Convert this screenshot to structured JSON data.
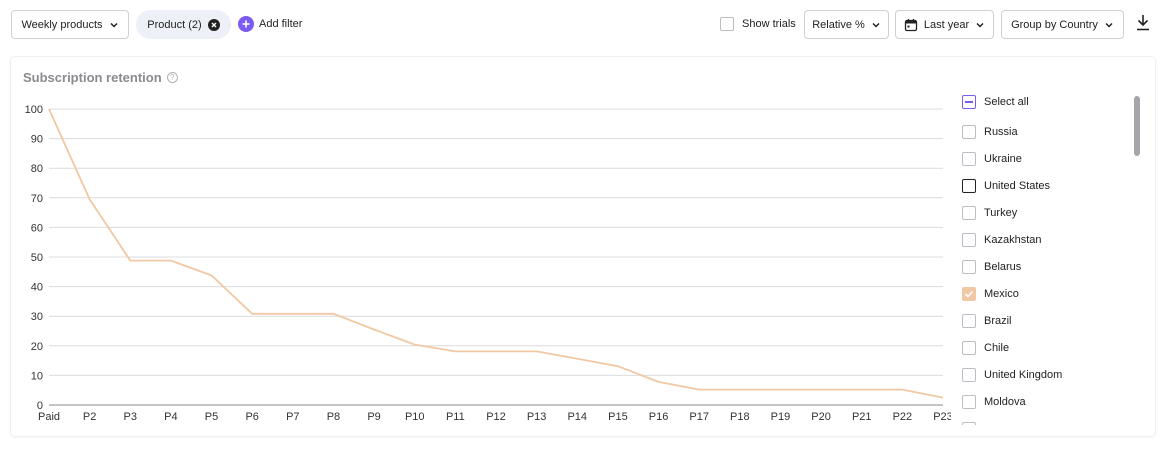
{
  "toolbar": {
    "period_dropdown": "Weekly products",
    "product_chip": "Product (2)",
    "add_filter": "Add filter",
    "show_trials": "Show trials",
    "mode_dropdown": "Relative %",
    "date_dropdown": "Last year",
    "group_dropdown": "Group by Country"
  },
  "card": {
    "title": "Subscription retention",
    "help_glyph": "?"
  },
  "legend": {
    "select_all": "Select all",
    "items": [
      {
        "label": "Russia",
        "state": "unchecked"
      },
      {
        "label": "Ukraine",
        "state": "unchecked"
      },
      {
        "label": "United States",
        "state": "focused"
      },
      {
        "label": "Turkey",
        "state": "unchecked"
      },
      {
        "label": "Kazakhstan",
        "state": "unchecked"
      },
      {
        "label": "Belarus",
        "state": "unchecked"
      },
      {
        "label": "Mexico",
        "state": "checked"
      },
      {
        "label": "Brazil",
        "state": "unchecked"
      },
      {
        "label": "Chile",
        "state": "unchecked"
      },
      {
        "label": "United Kingdom",
        "state": "unchecked"
      },
      {
        "label": "Moldova",
        "state": "unchecked"
      }
    ]
  },
  "colors": {
    "accent": "#7b5cf0",
    "series_mexico": "#f0c8a4",
    "grid": "#dcdcdf",
    "axis": "#8a8a8f"
  },
  "icons": {
    "period_chevron": "chevron-down-icon",
    "chip_remove": "close-circle-icon",
    "add_filter": "plus-circle-icon",
    "calendar": "calendar-icon",
    "download": "download-icon",
    "help": "help-circle-icon"
  },
  "chart_data": {
    "type": "line",
    "title": "Subscription retention",
    "categories": [
      "Paid",
      "P2",
      "P3",
      "P4",
      "P5",
      "P6",
      "P7",
      "P8",
      "P9",
      "P10",
      "P11",
      "P12",
      "P13",
      "P14",
      "P15",
      "P16",
      "P17",
      "P18",
      "P19",
      "P20",
      "P21",
      "P22",
      "P23"
    ],
    "yticks": [
      0,
      10,
      20,
      30,
      40,
      50,
      60,
      70,
      80,
      90,
      100
    ],
    "ylim": [
      0,
      100
    ],
    "grid": true,
    "legend_placement": "right",
    "series": [
      {
        "name": "Mexico",
        "color": "#f0c8a4",
        "values": [
          100,
          69.5,
          48.8,
          48.8,
          43.8,
          30.8,
          30.8,
          30.8,
          25.5,
          20.4,
          18.1,
          18.1,
          18.1,
          15.6,
          13.1,
          7.8,
          5.2,
          5.2,
          5.2,
          5.2,
          5.2,
          5.2,
          2.5
        ]
      }
    ]
  }
}
